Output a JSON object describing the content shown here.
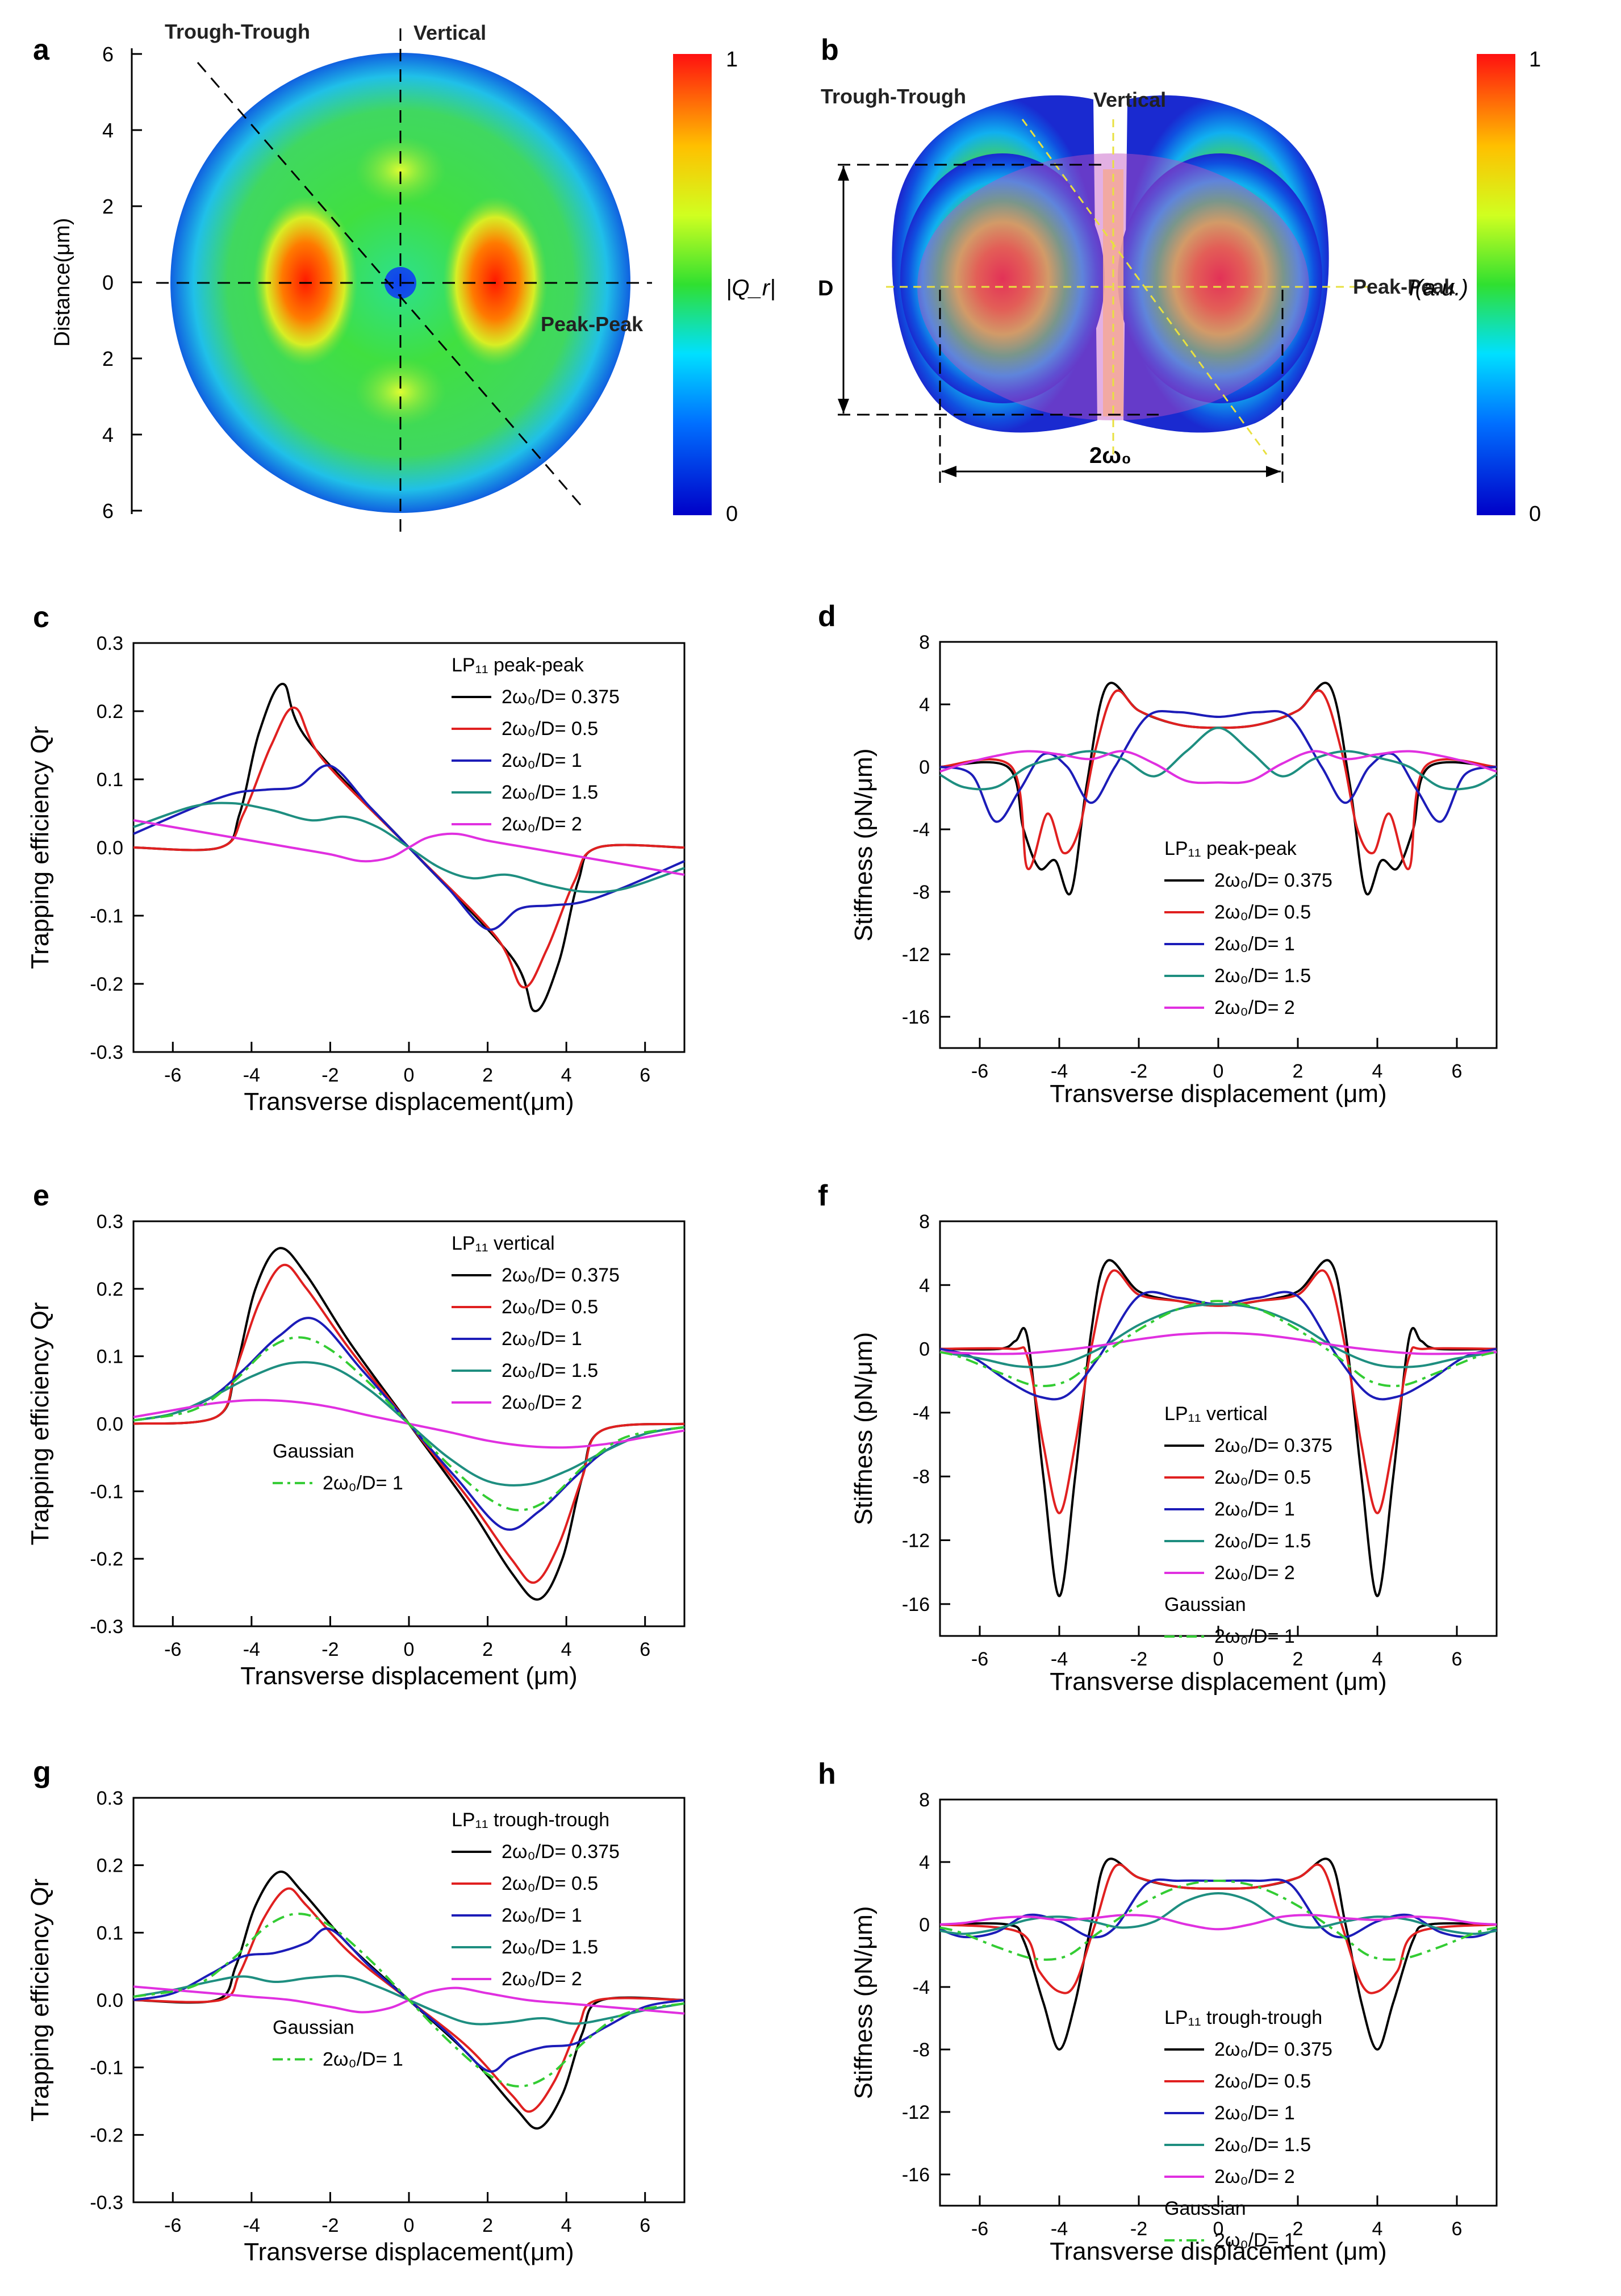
{
  "panels": {
    "a": {
      "letter": "a",
      "y_axis_label": "Distance(μm)",
      "y_ticks": [
        "6",
        "4",
        "2",
        "0",
        "2",
        "4",
        "6"
      ],
      "labels": {
        "trough": "Trough-Trough",
        "vertical": "Vertical",
        "peak": "Peak-Peak"
      },
      "colorbar": {
        "top": "1",
        "bottom": "0",
        "label": "|Q_r|"
      }
    },
    "b": {
      "letter": "b",
      "labels": {
        "trough": "Trough-Trough",
        "vertical": "Vertical",
        "peak": "Peak-Peak",
        "D": "D",
        "w0": "2ω₀"
      },
      "colorbar": {
        "top": "1",
        "bottom": "0",
        "label": "I(a.u.)"
      }
    }
  },
  "chart_data": [
    {
      "id": "c",
      "type": "line",
      "letter": "c",
      "xlabel": "Transverse displacement(μm)",
      "ylabel": "Trapping efficiency Qr",
      "xlim": [
        -7,
        7
      ],
      "ylim": [
        -0.3,
        0.3
      ],
      "xticks": [
        -6,
        -4,
        -2,
        0,
        2,
        4,
        6
      ],
      "yticks": [
        "-0.3",
        "-0.2",
        "-0.1",
        "0.0",
        "0.1",
        "0.2",
        "0.3"
      ],
      "legend_title": "LP₁₁ peak-peak",
      "series": [
        {
          "name": "2ω₀/D= 0.375",
          "color": "#000000",
          "x": [
            0,
            2.6,
            3.2,
            3.8,
            4.3,
            4.8,
            7
          ],
          "y": [
            0,
            -0.16,
            -0.24,
            -0.17,
            -0.05,
            0,
            0
          ]
        },
        {
          "name": "2ω₀/D= 0.5",
          "color": "#e02020",
          "x": [
            0,
            2.2,
            2.9,
            3.5,
            4.2,
            4.8,
            7
          ],
          "y": [
            0,
            -0.13,
            -0.205,
            -0.15,
            -0.05,
            0,
            0
          ]
        },
        {
          "name": "2ω₀/D= 1",
          "color": "#1c1cb8",
          "x": [
            0,
            1.0,
            2.0,
            2.8,
            3.6,
            4.4,
            5.4,
            7
          ],
          "y": [
            0,
            -0.06,
            -0.12,
            -0.09,
            -0.085,
            -0.08,
            -0.06,
            -0.02
          ]
        },
        {
          "name": "2ω₀/D= 1.5",
          "color": "#1e8e80",
          "x": [
            0,
            0.8,
            1.6,
            2.5,
            3.5,
            4.5,
            5.5,
            7
          ],
          "y": [
            0,
            -0.03,
            -0.045,
            -0.04,
            -0.055,
            -0.065,
            -0.06,
            -0.03
          ]
        },
        {
          "name": "2ω₀/D= 2",
          "color": "#e030e0",
          "x": [
            0,
            0.5,
            1.2,
            2.0,
            3.0,
            4.0,
            5.0,
            6.0,
            7
          ],
          "y": [
            0,
            0.015,
            0.02,
            0.01,
            0,
            -0.01,
            -0.02,
            -0.03,
            -0.04
          ]
        }
      ]
    },
    {
      "id": "d",
      "type": "line",
      "letter": "d",
      "xlabel": "Transverse displacement (μm)",
      "ylabel": "Stiffness (pN/μm)",
      "xlim": [
        -7,
        7
      ],
      "ylim": [
        -18,
        8
      ],
      "xticks": [
        -6,
        -4,
        -2,
        0,
        2,
        4,
        6
      ],
      "yticks": [
        "-16",
        "-12",
        "-8",
        "-4",
        "0",
        "4",
        "8"
      ],
      "legend_title": "LP₁₁ peak-peak",
      "series": [
        {
          "name": "2ω₀/D= 0.375",
          "color": "#000000",
          "x": [
            0,
            1.0,
            2.0,
            2.8,
            3.3,
            3.7,
            4.1,
            4.5,
            4.9,
            5.3,
            7
          ],
          "y": [
            2.5,
            2.7,
            3.6,
            5.2,
            -1,
            -8,
            -6,
            -6.5,
            -4,
            0,
            0
          ]
        },
        {
          "name": "2ω₀/D= 0.5",
          "color": "#e02020",
          "x": [
            0,
            1.0,
            2.0,
            2.6,
            3.1,
            3.5,
            3.9,
            4.3,
            4.8,
            5.2,
            7
          ],
          "y": [
            2.5,
            2.7,
            3.6,
            4.8,
            1,
            -4,
            -5.5,
            -3,
            -6.5,
            0,
            0
          ]
        },
        {
          "name": "2ω₀/D= 1",
          "color": "#1c1cb8",
          "x": [
            0,
            1.0,
            1.8,
            2.6,
            3.2,
            3.8,
            4.4,
            5.0,
            5.6,
            6.2,
            7
          ],
          "y": [
            3.2,
            3.5,
            3.2,
            0,
            -2.3,
            0,
            0.8,
            -1.5,
            -3.5,
            -0.5,
            0
          ]
        },
        {
          "name": "2ω₀/D= 1.5",
          "color": "#1e8e80",
          "x": [
            0,
            0.8,
            1.6,
            2.4,
            3.2,
            4.0,
            4.8,
            5.6,
            6.4,
            7
          ],
          "y": [
            2.5,
            1,
            -0.6,
            0.5,
            1,
            0.6,
            0,
            -1.3,
            -1.3,
            -0.5
          ]
        },
        {
          "name": "2ω₀/D= 2",
          "color": "#e030e0",
          "x": [
            0,
            0.8,
            1.6,
            2.4,
            3.2,
            4.0,
            4.8,
            5.6,
            6.4,
            7
          ],
          "y": [
            -1,
            -0.9,
            0.2,
            1,
            0.5,
            0.8,
            1,
            0.7,
            0.2,
            -0.3
          ]
        }
      ]
    },
    {
      "id": "e",
      "type": "line",
      "letter": "e",
      "xlabel": "Transverse displacement (μm)",
      "ylabel": "Trapping efficiency Qr",
      "xlim": [
        -7,
        7
      ],
      "ylim": [
        -0.3,
        0.3
      ],
      "xticks": [
        -6,
        -4,
        -2,
        0,
        2,
        4,
        6
      ],
      "yticks": [
        "-0.3",
        "-0.2",
        "-0.1",
        "0.0",
        "0.1",
        "0.2",
        "0.3"
      ],
      "legend_title": "LP₁₁ vertical",
      "legend2_title": "Gaussian",
      "series": [
        {
          "name": "2ω₀/D= 0.375",
          "color": "#000000",
          "x": [
            0,
            1.5,
            2.6,
            3.3,
            3.9,
            4.4,
            4.9,
            7
          ],
          "y": [
            0,
            -0.12,
            -0.22,
            -0.26,
            -0.2,
            -0.08,
            -0.01,
            0
          ]
        },
        {
          "name": "2ω₀/D= 0.5",
          "color": "#e02020",
          "x": [
            0,
            1.5,
            2.6,
            3.2,
            3.8,
            4.4,
            4.9,
            7
          ],
          "y": [
            0,
            -0.11,
            -0.2,
            -0.235,
            -0.18,
            -0.08,
            -0.01,
            0
          ]
        },
        {
          "name": "2ω₀/D= 1",
          "color": "#1c1cb8",
          "x": [
            0,
            1.2,
            2.4,
            3.3,
            4.2,
            5.0,
            6.0,
            7
          ],
          "y": [
            0,
            -0.08,
            -0.155,
            -0.13,
            -0.08,
            -0.04,
            -0.015,
            -0.005
          ]
        },
        {
          "name": "2ω₀/D= 1.5",
          "color": "#1e8e80",
          "x": [
            0,
            1.0,
            2.0,
            3.0,
            4.0,
            5.0,
            6.0,
            7
          ],
          "y": [
            0,
            -0.05,
            -0.085,
            -0.09,
            -0.07,
            -0.04,
            -0.015,
            -0.005
          ]
        },
        {
          "name": "2ω₀/D= 2",
          "color": "#e030e0",
          "x": [
            0,
            1.0,
            2.0,
            3.0,
            4.0,
            5.0,
            6.0,
            7
          ],
          "y": [
            0,
            -0.012,
            -0.025,
            -0.033,
            -0.035,
            -0.03,
            -0.02,
            -0.01
          ]
        },
        {
          "name": "2ω₀/D= 1",
          "color": "#33cc33",
          "dash": true,
          "gaussian": true,
          "x": [
            0,
            1.0,
            2.0,
            2.8,
            3.6,
            4.5,
            5.5,
            7
          ],
          "y": [
            0,
            -0.06,
            -0.11,
            -0.128,
            -0.11,
            -0.06,
            -0.02,
            -0.005
          ]
        }
      ]
    },
    {
      "id": "f",
      "type": "line",
      "letter": "f",
      "xlabel": "Transverse displacement (μm)",
      "ylabel": "Stiffness (pN/μm)",
      "xlim": [
        -7,
        7
      ],
      "ylim": [
        -18,
        8
      ],
      "xticks": [
        -6,
        -4,
        -2,
        0,
        2,
        4,
        6
      ],
      "yticks": [
        "-16",
        "-12",
        "-8",
        "-4",
        "0",
        "4",
        "8"
      ],
      "legend_title": "LP₁₁ vertical",
      "legend2_title": "Gaussian",
      "series": [
        {
          "name": "2ω₀/D= 0.375",
          "color": "#000000",
          "x": [
            0,
            1.0,
            2.0,
            2.8,
            3.2,
            3.6,
            4.0,
            4.4,
            4.8,
            5.1,
            5.5,
            7
          ],
          "y": [
            2.7,
            3,
            3.6,
            5.5,
            1,
            -8,
            -15.5,
            -8,
            0.7,
            0.5,
            0,
            0
          ]
        },
        {
          "name": "2ω₀/D= 0.5",
          "color": "#e02020",
          "x": [
            0,
            1.0,
            2.0,
            2.7,
            3.2,
            3.6,
            4.0,
            4.4,
            4.8,
            5.2,
            7
          ],
          "y": [
            2.7,
            3,
            3.4,
            4.8,
            0,
            -6,
            -10.3,
            -6,
            -0.5,
            0,
            0
          ]
        },
        {
          "name": "2ω₀/D= 1",
          "color": "#1c1cb8",
          "x": [
            0,
            1.0,
            2.0,
            3.0,
            3.8,
            4.5,
            5.3,
            6.2,
            7
          ],
          "y": [
            2.8,
            3.2,
            3.3,
            -0.5,
            -2.9,
            -3,
            -2,
            -0.5,
            0
          ]
        },
        {
          "name": "2ω₀/D= 1.5",
          "color": "#1e8e80",
          "x": [
            0,
            1.0,
            2.0,
            3.0,
            4.0,
            5.0,
            6.0,
            7
          ],
          "y": [
            2.8,
            2.5,
            1.5,
            0,
            -1,
            -1.1,
            -0.6,
            -0.2
          ]
        },
        {
          "name": "2ω₀/D= 2",
          "color": "#e030e0",
          "x": [
            0,
            1.0,
            2.0,
            3.0,
            4.0,
            5.0,
            6.0,
            7
          ],
          "y": [
            1,
            0.9,
            0.6,
            0.2,
            -0.1,
            -0.3,
            -0.3,
            -0.2
          ]
        },
        {
          "name": "2ω₀/D= 1",
          "color": "#33cc33",
          "dash": true,
          "gaussian": true,
          "x": [
            0,
            1.0,
            2.0,
            3.0,
            3.8,
            4.6,
            5.5,
            6.5,
            7
          ],
          "y": [
            3,
            2.5,
            1.2,
            -0.5,
            -2,
            -2.3,
            -1.5,
            -0.5,
            -0.2
          ]
        }
      ]
    },
    {
      "id": "g",
      "type": "line",
      "letter": "g",
      "xlabel": "Transverse displacement(μm)",
      "ylabel": "Trapping efficiency Qr",
      "xlim": [
        -7,
        7
      ],
      "ylim": [
        -0.3,
        0.3
      ],
      "xticks": [
        -6,
        -4,
        -2,
        0,
        2,
        4,
        6
      ],
      "yticks": [
        "-0.3",
        "-0.2",
        "-0.1",
        "0.0",
        "0.1",
        "0.2",
        "0.3"
      ],
      "legend_title": "LP₁₁ trough-trough",
      "legend2_title": "Gaussian",
      "series": [
        {
          "name": "2ω₀/D= 0.375",
          "color": "#000000",
          "x": [
            0,
            1.5,
            2.7,
            3.3,
            3.9,
            4.4,
            4.9,
            7
          ],
          "y": [
            0,
            -0.08,
            -0.16,
            -0.19,
            -0.14,
            -0.05,
            0,
            0
          ]
        },
        {
          "name": "2ω₀/D= 0.5",
          "color": "#e02020",
          "x": [
            0,
            1.5,
            2.6,
            3.1,
            3.7,
            4.3,
            4.8,
            7
          ],
          "y": [
            0,
            -0.07,
            -0.14,
            -0.165,
            -0.12,
            -0.04,
            0,
            0
          ]
        },
        {
          "name": "2ω₀/D= 1",
          "color": "#1c1cb8",
          "x": [
            0,
            1.0,
            2.0,
            2.6,
            3.4,
            4.2,
            5.0,
            6.0,
            7
          ],
          "y": [
            0,
            -0.05,
            -0.105,
            -0.085,
            -0.07,
            -0.065,
            -0.04,
            -0.01,
            0
          ]
        },
        {
          "name": "2ω₀/D= 1.5",
          "color": "#1e8e80",
          "x": [
            0,
            0.8,
            1.6,
            2.5,
            3.4,
            4.2,
            5.0,
            6.0,
            7
          ],
          "y": [
            0,
            -0.02,
            -0.035,
            -0.033,
            -0.027,
            -0.035,
            -0.028,
            -0.015,
            -0.005
          ]
        },
        {
          "name": "2ω₀/D= 2",
          "color": "#e030e0",
          "x": [
            0,
            0.5,
            1.2,
            2.0,
            3.0,
            4.0,
            5.0,
            6.0,
            7
          ],
          "y": [
            0,
            0.012,
            0.018,
            0.01,
            0,
            -0.005,
            -0.01,
            -0.015,
            -0.02
          ]
        },
        {
          "name": "2ω₀/D= 1",
          "color": "#33cc33",
          "dash": true,
          "gaussian": true,
          "x": [
            0,
            1.0,
            2.0,
            2.8,
            3.6,
            4.5,
            5.5,
            7
          ],
          "y": [
            0,
            -0.06,
            -0.11,
            -0.128,
            -0.11,
            -0.06,
            -0.02,
            -0.005
          ]
        }
      ]
    },
    {
      "id": "h",
      "type": "line",
      "letter": "h",
      "xlabel": "Transverse displacement (μm)",
      "ylabel": "Stiffness (pN/μm)",
      "xlim": [
        -7,
        7
      ],
      "ylim": [
        -18,
        8
      ],
      "xticks": [
        -6,
        -4,
        -2,
        0,
        2,
        4,
        6
      ],
      "yticks": [
        "-16",
        "-12",
        "-8",
        "-4",
        "0",
        "4",
        "8"
      ],
      "legend_title": "LP₁₁ trough-trough",
      "legend2_title": "Gaussian",
      "series": [
        {
          "name": "2ω₀/D= 0.375",
          "color": "#000000",
          "x": [
            0,
            1.0,
            2.0,
            2.8,
            3.2,
            3.6,
            4.0,
            4.4,
            4.9,
            5.3,
            7
          ],
          "y": [
            2.3,
            2.4,
            3,
            4.1,
            0,
            -5,
            -8,
            -5,
            -1,
            0,
            0
          ]
        },
        {
          "name": "2ω₀/D= 0.5",
          "color": "#e02020",
          "x": [
            0,
            1.0,
            2.0,
            2.6,
            3.1,
            3.6,
            4.0,
            4.5,
            5.0,
            7
          ],
          "y": [
            2.3,
            2.4,
            3,
            3.7,
            0,
            -3.8,
            -4.3,
            -3,
            -0.5,
            0
          ]
        },
        {
          "name": "2ω₀/D= 1",
          "color": "#1c1cb8",
          "x": [
            0,
            1.0,
            1.8,
            2.6,
            3.2,
            4.0,
            4.8,
            5.6,
            6.4,
            7
          ],
          "y": [
            2.8,
            2.8,
            2.6,
            -0.2,
            -0.8,
            0.2,
            0.6,
            -0.5,
            -0.8,
            -0.3
          ]
        },
        {
          "name": "2ω₀/D= 1.5",
          "color": "#1e8e80",
          "x": [
            0,
            0.8,
            1.6,
            2.4,
            3.2,
            4.0,
            4.8,
            5.6,
            6.4,
            7
          ],
          "y": [
            2,
            1.5,
            0.2,
            -0.2,
            0.2,
            0.5,
            0.3,
            -0.3,
            -0.6,
            -0.4
          ]
        },
        {
          "name": "2ω₀/D= 2",
          "color": "#e030e0",
          "x": [
            0,
            0.8,
            1.6,
            2.4,
            3.2,
            4.0,
            4.8,
            5.6,
            6.4,
            7
          ],
          "y": [
            -0.3,
            0,
            0.5,
            0.6,
            0.4,
            0.3,
            0.5,
            0.4,
            0.1,
            0
          ]
        },
        {
          "name": "2ω₀/D= 1",
          "color": "#33cc33",
          "dash": true,
          "gaussian": true,
          "x": [
            0,
            1.0,
            2.0,
            3.0,
            3.8,
            4.6,
            5.5,
            6.5,
            7
          ],
          "y": [
            2.8,
            2.4,
            1.2,
            -0.5,
            -2,
            -2.2,
            -1.5,
            -0.5,
            -0.2
          ]
        }
      ]
    }
  ]
}
